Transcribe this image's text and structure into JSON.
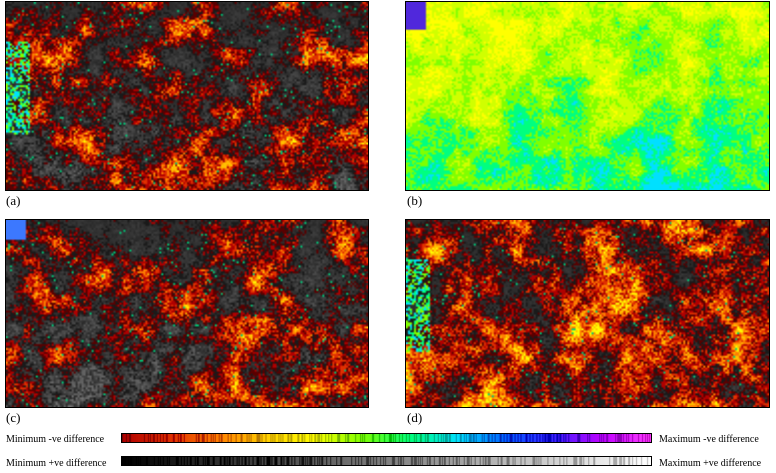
{
  "panels": [
    {
      "id": "a",
      "label": "(a)",
      "balance": 0.45,
      "grey_weight": 0.45,
      "noise_seed": 11,
      "corner": "left"
    },
    {
      "id": "b",
      "label": "(b)",
      "balance": 0.0,
      "grey_weight": 0.0,
      "noise_seed": 23,
      "corner": "top-left"
    },
    {
      "id": "c",
      "label": "(c)",
      "balance": 0.4,
      "grey_weight": 0.5,
      "noise_seed": 37,
      "corner": "top-left"
    },
    {
      "id": "d",
      "label": "(d)",
      "balance": 0.7,
      "grey_weight": 0.3,
      "noise_seed": 53,
      "corner": "left"
    }
  ],
  "colorbars": {
    "negative": {
      "min_label": "Minimum -ve difference",
      "max_label": "Maximum -ve difference",
      "stops": [
        "#b00000",
        "#e03000",
        "#ff8000",
        "#ffd000",
        "#ffff00",
        "#80ff00",
        "#00ff80",
        "#00e0ff",
        "#0060ff",
        "#4020ff",
        "#c000ff",
        "#ff40ff"
      ]
    },
    "positive": {
      "min_label": "Minimum +ve difference",
      "max_label": "Maximum +ve difference",
      "stops": [
        "#000000",
        "#404040",
        "#808080",
        "#c0c0c0",
        "#ffffff"
      ]
    }
  }
}
